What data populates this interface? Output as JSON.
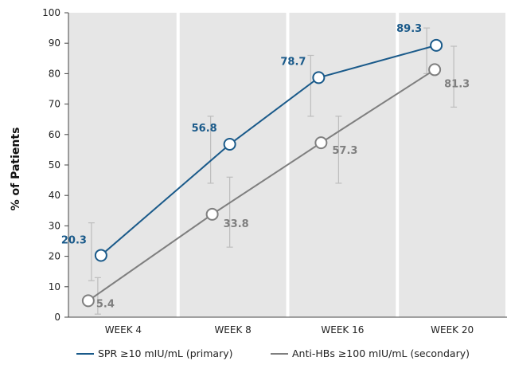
{
  "chart_data": {
    "type": "line",
    "categories": [
      "WEEK 4",
      "WEEK 8",
      "WEEK 16",
      "WEEK 20"
    ],
    "ylabel": "% of Patients",
    "ylim": [
      0,
      100
    ],
    "yticks": [
      0,
      10,
      20,
      30,
      40,
      50,
      60,
      70,
      80,
      90,
      100
    ],
    "grid": false,
    "legend_position": "bottom",
    "series": [
      {
        "name": "SPR ≥10 mIU/mL (primary)",
        "color": "#1a5a8a",
        "values": [
          20.3,
          56.8,
          78.7,
          89.3
        ],
        "labels": [
          "20.3",
          "56.8",
          "78.7",
          "89.3"
        ],
        "ci_low": [
          12,
          44,
          66,
          80
        ],
        "ci_high": [
          31,
          66,
          86,
          95
        ]
      },
      {
        "name": "Anti-HBs ≥100 mIU/mL (secondary)",
        "color": "#7f7f7f",
        "values": [
          5.4,
          33.8,
          57.3,
          81.3
        ],
        "labels": [
          "5.4",
          "33.8",
          "57.3",
          "81.3"
        ],
        "ci_low": [
          1,
          23,
          44,
          69
        ],
        "ci_high": [
          13,
          46,
          66,
          89
        ]
      }
    ]
  }
}
